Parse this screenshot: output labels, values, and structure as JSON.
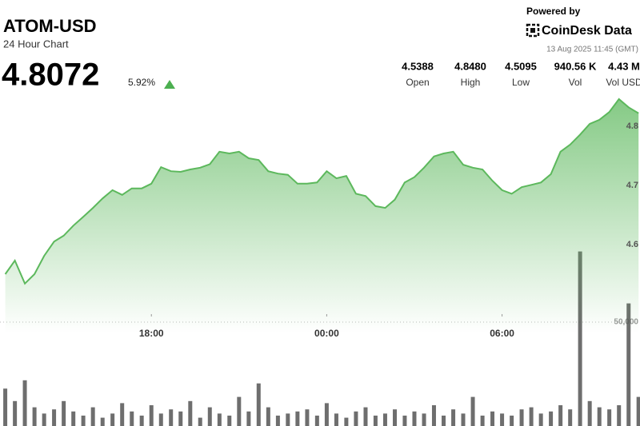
{
  "chart_data": {
    "type": "line",
    "title": "ATOM-USD",
    "subtitle": "24 Hour Chart",
    "price": "4.8072",
    "change": "5.92%",
    "powered_by": "Powered by",
    "brand": "CoinDesk Data",
    "timestamp": "13 Aug 2025 11:45 (GMT)",
    "stats": [
      {
        "value": "4.5388",
        "label": "Open"
      },
      {
        "value": "4.8480",
        "label": "High"
      },
      {
        "value": "4.5095",
        "label": "Low"
      },
      {
        "value": "940.56 K",
        "label": "Vol"
      },
      {
        "value": "4.43 M",
        "label": "Vol USD"
      }
    ],
    "x": [
      13,
      13.33,
      13.67,
      14,
      14.33,
      14.67,
      15,
      15.33,
      15.67,
      16,
      16.33,
      16.67,
      17,
      17.33,
      17.67,
      18,
      18.33,
      18.67,
      19,
      19.33,
      19.67,
      20,
      20.33,
      20.67,
      21,
      21.33,
      21.67,
      22,
      22.33,
      22.67,
      23,
      23.33,
      23.67,
      24,
      24.33,
      24.67,
      25,
      25.33,
      25.67,
      26,
      26.33,
      26.67,
      27,
      27.33,
      27.67,
      28,
      28.33,
      28.67,
      29,
      29.33,
      29.67,
      30,
      30.33,
      30.67,
      31,
      31.33,
      31.67,
      32,
      32.33,
      32.67,
      33,
      33.33,
      33.67,
      34,
      34.33,
      34.67
    ],
    "series": [
      {
        "type": "line",
        "color": "#5cb85c",
        "values": [
          4.55,
          4.573,
          4.534,
          4.55,
          4.581,
          4.605,
          4.615,
          4.632,
          4.647,
          4.662,
          4.678,
          4.692,
          4.684,
          4.695,
          4.695,
          4.703,
          4.731,
          4.724,
          4.723,
          4.727,
          4.73,
          4.736,
          4.757,
          4.754,
          4.757,
          4.746,
          4.743,
          4.724,
          4.72,
          4.718,
          4.703,
          4.703,
          4.705,
          4.724,
          4.712,
          4.716,
          4.686,
          4.682,
          4.665,
          4.662,
          4.676,
          4.705,
          4.714,
          4.73,
          4.749,
          4.754,
          4.757,
          4.735,
          4.73,
          4.727,
          4.708,
          4.692,
          4.686,
          4.697,
          4.701,
          4.705,
          4.719,
          4.757,
          4.769,
          4.786,
          4.804,
          4.811,
          4.824,
          4.846,
          4.832,
          4.822
        ]
      },
      {
        "type": "bar",
        "axis": "y2",
        "color": "#555555",
        "values": [
          18000,
          12000,
          22000,
          9000,
          6000,
          8000,
          12000,
          7000,
          5000,
          9000,
          4000,
          6000,
          11000,
          7000,
          5000,
          10000,
          6000,
          8000,
          7000,
          12000,
          4000,
          9000,
          6000,
          5000,
          14000,
          7000,
          20500,
          9000,
          5000,
          6000,
          7000,
          8000,
          5000,
          11000,
          6000,
          4000,
          7000,
          9000,
          5000,
          6000,
          8000,
          5000,
          7000,
          6000,
          10000,
          5000,
          8000,
          6000,
          14000,
          5000,
          7000,
          6000,
          5000,
          8000,
          9000,
          6000,
          7000,
          10000,
          8000,
          84000,
          12000,
          9000,
          8000,
          10000,
          59000,
          14000
        ]
      }
    ],
    "xlim": [
      12.82,
      34.72
    ],
    "xticks": [
      {
        "value": 18,
        "label": "18:00"
      },
      {
        "value": 24,
        "label": "00:00"
      },
      {
        "value": 30,
        "label": "06:00"
      }
    ],
    "ylim": [
      4.45,
      4.95
    ],
    "yticks": [
      4.6,
      4.7,
      4.8
    ],
    "y2lim": [
      0,
      100000
    ],
    "y2ticks": [
      {
        "value": 50000,
        "label": "50,000"
      }
    ],
    "grid": false,
    "y2grid": true
  }
}
